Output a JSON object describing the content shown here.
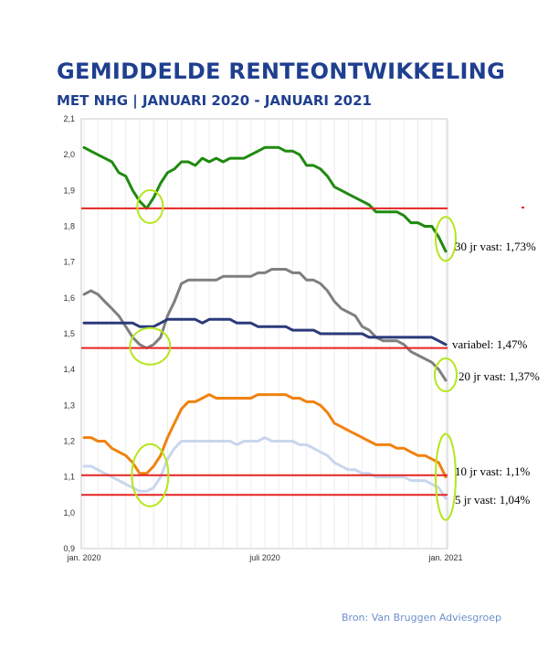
{
  "header": {
    "title": "GEMIDDELDE RENTEONTWIKKELING",
    "subtitle": "MET NHG | JANUARI 2020 - JANUARI 2021"
  },
  "source": "Bron: Van Bruggen Adviesgroep",
  "chart_data": {
    "type": "line",
    "title": "GEMIDDELDE RENTEONTWIKKELING",
    "subtitle": "MET NHG | JANUARI 2020 - JANUARI 2021",
    "ylim": [
      0.9,
      2.1
    ],
    "yticks": [
      "0,9",
      "1,0",
      "1,1",
      "1,2",
      "1,3",
      "1,4",
      "1,5",
      "1,6",
      "1,7",
      "1,8",
      "1,9",
      "2,0",
      "2,1"
    ],
    "ytick_values": [
      0.9,
      1.0,
      1.1,
      1.2,
      1.3,
      1.4,
      1.5,
      1.6,
      1.7,
      1.8,
      1.9,
      2.0,
      2.1
    ],
    "xlim": [
      0,
      52
    ],
    "xticks": [
      {
        "x": 0,
        "label": "jan. 2020"
      },
      {
        "x": 26,
        "label": "juli 2020"
      },
      {
        "x": 52,
        "label": "jan. 2021"
      }
    ],
    "grid": "vertical",
    "series": [
      {
        "name": "30 jr vast: 1,73%",
        "color": "#1f8a0f",
        "values": [
          2.02,
          2.01,
          2.0,
          1.99,
          1.98,
          1.95,
          1.94,
          1.9,
          1.87,
          1.85,
          1.88,
          1.92,
          1.95,
          1.96,
          1.98,
          1.98,
          1.97,
          1.99,
          1.98,
          1.99,
          1.98,
          1.99,
          1.99,
          1.99,
          2.0,
          2.01,
          2.02,
          2.02,
          2.02,
          2.01,
          2.01,
          2.0,
          1.97,
          1.97,
          1.96,
          1.94,
          1.91,
          1.9,
          1.89,
          1.88,
          1.87,
          1.86,
          1.84,
          1.84,
          1.84,
          1.84,
          1.83,
          1.81,
          1.81,
          1.8,
          1.8,
          1.77,
          1.73
        ]
      },
      {
        "name": "20 jr vast: 1,37%",
        "color": "#7f7f7f",
        "values": [
          1.61,
          1.62,
          1.61,
          1.59,
          1.57,
          1.55,
          1.52,
          1.49,
          1.47,
          1.46,
          1.47,
          1.49,
          1.55,
          1.59,
          1.64,
          1.65,
          1.65,
          1.65,
          1.65,
          1.65,
          1.66,
          1.66,
          1.66,
          1.66,
          1.66,
          1.67,
          1.67,
          1.68,
          1.68,
          1.68,
          1.67,
          1.67,
          1.65,
          1.65,
          1.64,
          1.62,
          1.59,
          1.57,
          1.56,
          1.55,
          1.52,
          1.51,
          1.49,
          1.48,
          1.48,
          1.48,
          1.47,
          1.45,
          1.44,
          1.43,
          1.42,
          1.4,
          1.37
        ]
      },
      {
        "name": "variabel: 1,47%",
        "color": "#2b3a7a",
        "values": [
          1.53,
          1.53,
          1.53,
          1.53,
          1.53,
          1.53,
          1.53,
          1.53,
          1.52,
          1.52,
          1.52,
          1.53,
          1.54,
          1.54,
          1.54,
          1.54,
          1.54,
          1.53,
          1.54,
          1.54,
          1.54,
          1.54,
          1.53,
          1.53,
          1.53,
          1.52,
          1.52,
          1.52,
          1.52,
          1.52,
          1.51,
          1.51,
          1.51,
          1.51,
          1.5,
          1.5,
          1.5,
          1.5,
          1.5,
          1.5,
          1.5,
          1.49,
          1.49,
          1.49,
          1.49,
          1.49,
          1.49,
          1.49,
          1.49,
          1.49,
          1.49,
          1.48,
          1.47
        ]
      },
      {
        "name": "10 jr vast: 1,1%",
        "color": "#f0820f",
        "values": [
          1.21,
          1.21,
          1.2,
          1.2,
          1.18,
          1.17,
          1.16,
          1.14,
          1.11,
          1.11,
          1.13,
          1.16,
          1.21,
          1.25,
          1.29,
          1.31,
          1.31,
          1.32,
          1.33,
          1.32,
          1.32,
          1.32,
          1.32,
          1.32,
          1.32,
          1.33,
          1.33,
          1.33,
          1.33,
          1.33,
          1.32,
          1.32,
          1.31,
          1.31,
          1.3,
          1.28,
          1.25,
          1.24,
          1.23,
          1.22,
          1.21,
          1.2,
          1.19,
          1.19,
          1.19,
          1.18,
          1.18,
          1.17,
          1.16,
          1.16,
          1.15,
          1.14,
          1.1
        ]
      },
      {
        "name": "5 jr vast: 1,04%",
        "color": "#c9d6ee",
        "values": [
          1.13,
          1.13,
          1.12,
          1.11,
          1.1,
          1.09,
          1.08,
          1.07,
          1.06,
          1.06,
          1.07,
          1.1,
          1.15,
          1.18,
          1.2,
          1.2,
          1.2,
          1.2,
          1.2,
          1.2,
          1.2,
          1.2,
          1.19,
          1.2,
          1.2,
          1.2,
          1.21,
          1.2,
          1.2,
          1.2,
          1.2,
          1.19,
          1.19,
          1.18,
          1.17,
          1.16,
          1.14,
          1.13,
          1.12,
          1.12,
          1.11,
          1.11,
          1.1,
          1.1,
          1.1,
          1.1,
          1.1,
          1.09,
          1.09,
          1.09,
          1.08,
          1.07,
          1.04
        ]
      }
    ],
    "reference_lines": {
      "color": "#e52421",
      "values": [
        1.85,
        1.46,
        1.105,
        1.05
      ]
    },
    "highlights": {
      "color": "#b5e61d",
      "items": [
        {
          "x": 9.5,
          "y": 1.855
        },
        {
          "x": 9.5,
          "y": 1.465
        },
        {
          "x": 9.5,
          "y": 1.105
        },
        {
          "x": 52,
          "y": 1.765
        },
        {
          "x": 52,
          "y": 1.385
        },
        {
          "x": 52,
          "y": 1.1
        }
      ]
    }
  }
}
